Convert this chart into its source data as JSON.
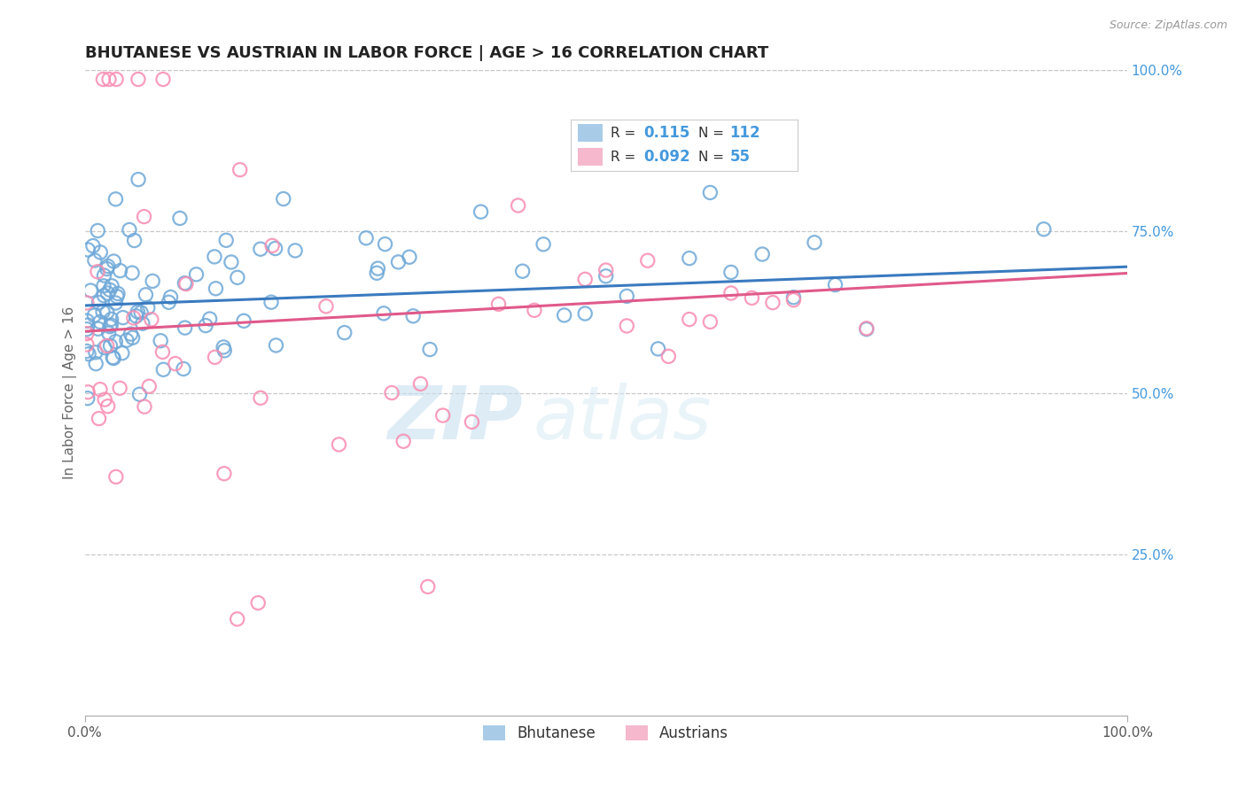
{
  "title": "BHUTANESE VS AUSTRIAN IN LABOR FORCE | AGE > 16 CORRELATION CHART",
  "source_text": "Source: ZipAtlas.com",
  "ylabel": "In Labor Force | Age > 16",
  "right_yticks": [
    "100.0%",
    "75.0%",
    "50.0%",
    "25.0%"
  ],
  "right_ytick_vals": [
    1.0,
    0.75,
    0.5,
    0.25
  ],
  "watermark_zip": "ZIP",
  "watermark_atlas": "atlas",
  "blue_scatter_color": "#6ea8d8",
  "pink_scatter_color": "#f98cb0",
  "blue_line_color": "#3a7abf",
  "pink_line_color": "#e05a8a",
  "grid_color": "#c8c8c8",
  "title_color": "#222222",
  "xlim": [
    0.0,
    1.0
  ],
  "ylim": [
    0.0,
    1.0
  ],
  "blue_trend_start": 0.635,
  "blue_trend_end": 0.695,
  "pink_trend_start": 0.595,
  "pink_trend_end": 0.685,
  "legend_blue_patch": "#a8cce8",
  "legend_pink_patch": "#f5b8cc",
  "legend_r1_label": "R = ",
  "legend_r1_val": "0.115",
  "legend_n1_label": "N = ",
  "legend_n1_val": "112",
  "legend_r2_val": "0.092",
  "legend_n2_val": "55",
  "legend_val_color": "#4499dd",
  "legend_label_color": "#333333"
}
